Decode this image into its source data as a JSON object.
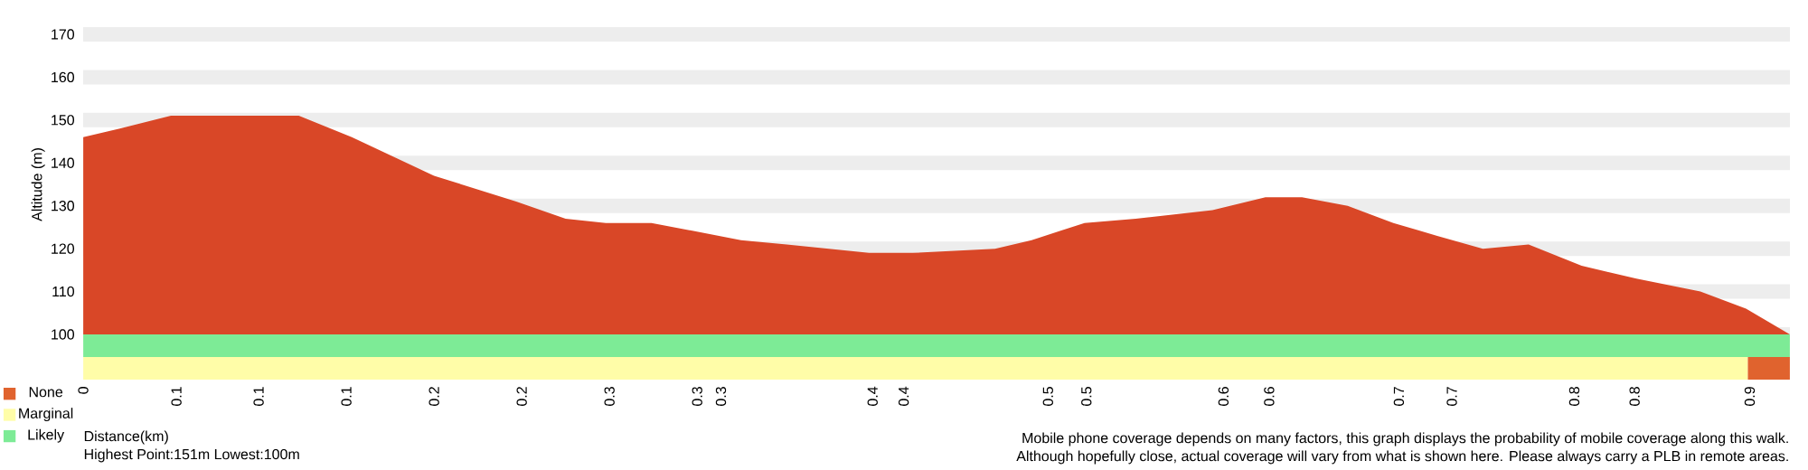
{
  "chart_data": [
    {
      "type": "area",
      "xlabel": "Distance(km)",
      "ylabel": "Altitude (m)",
      "color": "#d94727",
      "x": [
        0,
        0.02,
        0.048,
        0.071,
        0.097,
        0.118,
        0.147,
        0.192,
        0.237,
        0.264,
        0.286,
        0.311,
        0.36,
        0.385,
        0.43,
        0.454,
        0.499,
        0.519,
        0.548,
        0.576,
        0.618,
        0.647,
        0.667,
        0.692,
        0.717,
        0.741,
        0.766,
        0.791,
        0.82,
        0.85,
        0.885,
        0.91,
        0.934
      ],
      "values": [
        146,
        148,
        151,
        151,
        151,
        151,
        146,
        137,
        131,
        127,
        126,
        126,
        122,
        121,
        119,
        119,
        120,
        122,
        126,
        127,
        129,
        132,
        132,
        130,
        126,
        123,
        120,
        121,
        116,
        113,
        110,
        106,
        100
      ],
      "xlim": [
        0,
        0.934
      ],
      "ylim": [
        100,
        170
      ],
      "xticks": [
        0,
        {
          "value": 0.051,
          "label": "0.1"
        },
        {
          "value": 0.096,
          "label": "0.1"
        },
        {
          "value": 0.144,
          "label": "0.1"
        },
        {
          "value": 0.192,
          "label": "0.2"
        },
        {
          "value": 0.24,
          "label": "0.2"
        },
        {
          "value": 0.288,
          "label": "0.3"
        },
        {
          "value": 0.336,
          "label": "0.3"
        },
        {
          "value": 0.349,
          "label": "0.3"
        },
        {
          "value": 0.432,
          "label": "0.4"
        },
        {
          "value": 0.449,
          "label": "0.4"
        },
        {
          "value": 0.528,
          "label": "0.5"
        },
        {
          "value": 0.549,
          "label": "0.5"
        },
        {
          "value": 0.624,
          "label": "0.6"
        },
        {
          "value": 0.649,
          "label": "0.6"
        },
        {
          "value": 0.72,
          "label": "0.7"
        },
        {
          "value": 0.749,
          "label": "0.7"
        },
        {
          "value": 0.816,
          "label": "0.8"
        },
        {
          "value": 0.849,
          "label": "0.8"
        },
        {
          "value": 0.912,
          "label": "0.9"
        }
      ],
      "yticks": [
        100,
        110,
        120,
        130,
        140,
        150,
        160,
        170
      ],
      "grid": "y",
      "annotations": [
        "Highest Point:151m Lowest:100m",
        "Mobile phone coverage depends on many factors, this graph displays the probability of mobile coverage along this walk.",
        "Although hopefully close, actual coverage will vary from what is shown here. Please always carry a PLB in remote areas."
      ]
    },
    {
      "type": "bar",
      "orientation": "horizontal",
      "stacked": true,
      "categories": [
        null,
        null
      ],
      "series": [
        {
          "name": "Likely",
          "color": "#7deb96",
          "values": [
            0.934,
            null
          ]
        },
        {
          "name": "Marginal",
          "color": "#fffda8",
          "values": [
            null,
            0.911
          ]
        },
        {
          "name": "None",
          "color": "#e0632e",
          "values": [
            null,
            0.023
          ]
        }
      ],
      "xlim": [
        0,
        0.934
      ],
      "legend": "left"
    }
  ]
}
